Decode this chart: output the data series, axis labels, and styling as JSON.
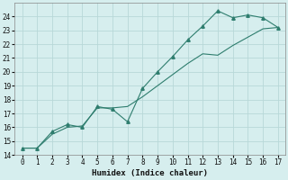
{
  "x": [
    0,
    1,
    2,
    3,
    4,
    5,
    6,
    7,
    8,
    9,
    10,
    11,
    12,
    13,
    14,
    15,
    16,
    17
  ],
  "y_jagged": [
    14.5,
    14.5,
    15.7,
    16.2,
    16.0,
    17.5,
    17.3,
    16.4,
    18.8,
    20.0,
    21.1,
    22.3,
    23.3,
    24.4,
    23.9,
    24.1,
    23.9,
    23.2
  ],
  "y_smooth": [
    14.5,
    14.5,
    15.5,
    16.0,
    16.1,
    17.4,
    17.4,
    17.5,
    18.2,
    19.0,
    19.8,
    20.6,
    21.3,
    21.2,
    21.9,
    22.5,
    23.1,
    23.2
  ],
  "line_color": "#2e7d6e",
  "bg_color": "#d6eeee",
  "grid_color": "#b8d8d8",
  "xlabel": "Humidex (Indice chaleur)",
  "ylim": [
    14,
    25
  ],
  "xlim": [
    -0.5,
    17.5
  ],
  "yticks": [
    14,
    15,
    16,
    17,
    18,
    19,
    20,
    21,
    22,
    23,
    24
  ],
  "xticks": [
    0,
    1,
    2,
    3,
    4,
    5,
    6,
    7,
    8,
    9,
    10,
    11,
    12,
    13,
    14,
    15,
    16,
    17
  ]
}
